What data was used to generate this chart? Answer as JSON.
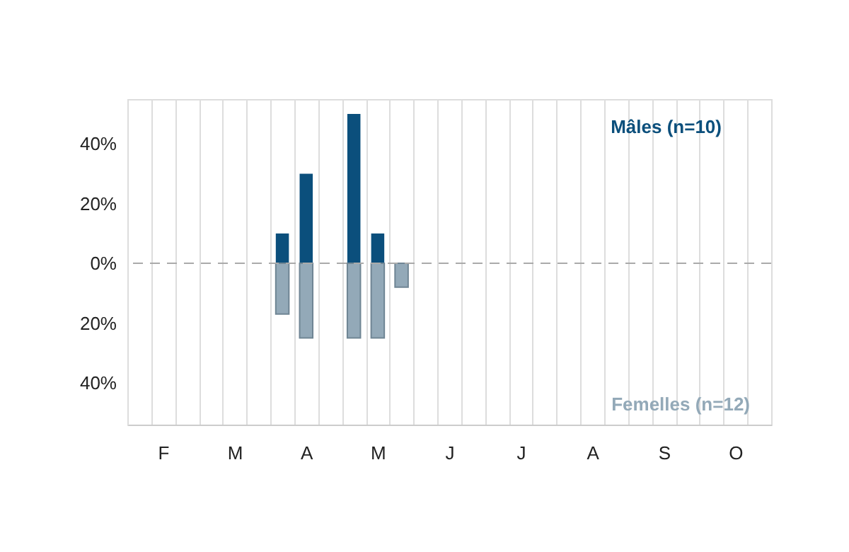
{
  "chart_data": {
    "type": "bar",
    "categories": [
      null,
      "F",
      null,
      null,
      "M",
      null,
      null,
      "A",
      null,
      null,
      "M",
      null,
      null,
      "J",
      null,
      null,
      "J",
      null,
      null,
      "A",
      null,
      null,
      "S",
      null,
      null,
      "O",
      null
    ],
    "series": [
      {
        "name": "Mâles (n=10)",
        "color": "#0b4f7c",
        "values": [
          null,
          null,
          null,
          null,
          null,
          null,
          10,
          30,
          null,
          50,
          10,
          null,
          null,
          null,
          null,
          null,
          null,
          null,
          null,
          null,
          null,
          null,
          null,
          null,
          null,
          null,
          null
        ]
      },
      {
        "name": "Femelles (n=12)",
        "color": "#93a9b8",
        "values": [
          null,
          null,
          null,
          null,
          null,
          null,
          -17,
          -25,
          null,
          -25,
          -25,
          -8,
          null,
          null,
          null,
          null,
          null,
          null,
          null,
          null,
          null,
          null,
          null,
          null,
          null,
          null,
          null
        ]
      }
    ],
    "ylim": [
      -54,
      55
    ],
    "yticks": [
      {
        "value": -40,
        "label": "40%"
      },
      {
        "value": -20,
        "label": "20%"
      },
      {
        "value": 0,
        "label": "0%"
      },
      {
        "value": 20,
        "label": "20%"
      },
      {
        "value": 40,
        "label": "40%"
      }
    ],
    "grid": "x",
    "ref_lines": [
      {
        "axis": "y",
        "value": 0,
        "color": "#aaaaaa",
        "line_style": "dashed"
      }
    ]
  }
}
